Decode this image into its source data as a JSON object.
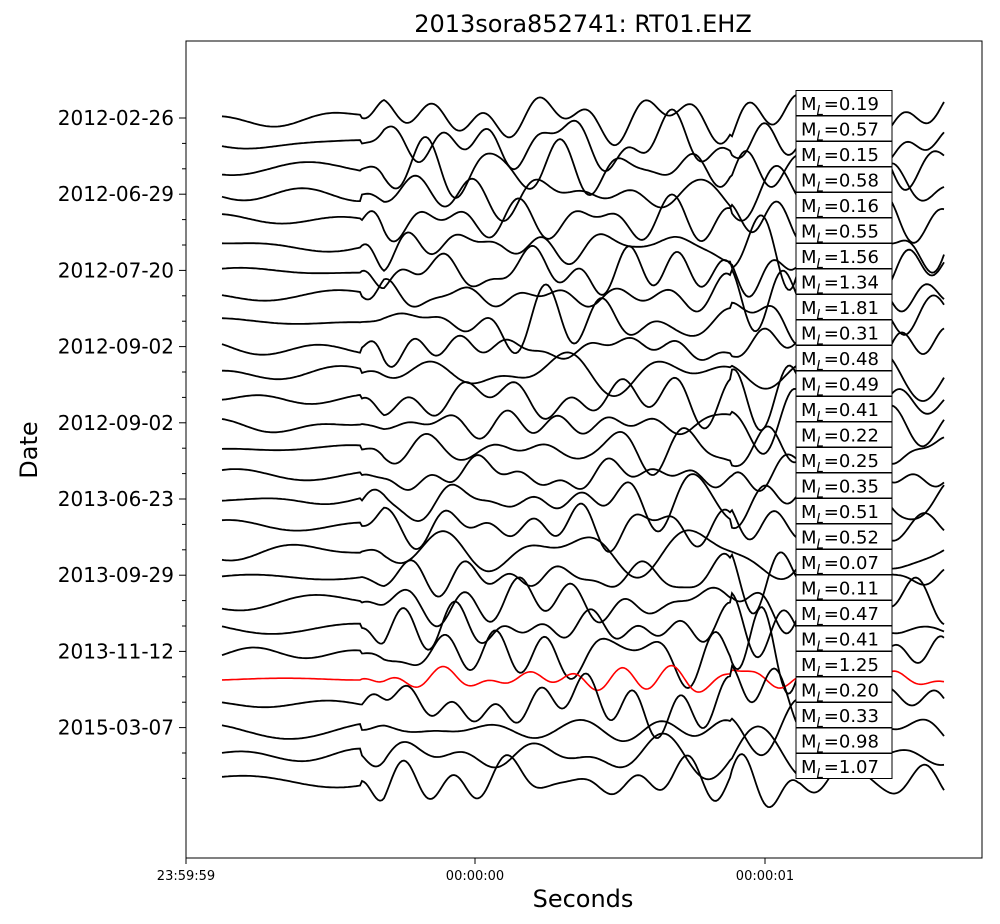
{
  "chart_data": {
    "type": "line",
    "title": "2013sora852741: RT01.EHZ",
    "xlabel": "Seconds",
    "ylabel": "Date",
    "x_ticks": [
      "23:59:59",
      "00:00:00",
      "00:00:01"
    ],
    "y_ticks": [
      "2012-02-26",
      "2012-06-29",
      "2012-07-20",
      "2012-09-02",
      "2012-09-02",
      "2013-06-23",
      "2013-09-29",
      "2013-11-12",
      "2015-03-07"
    ],
    "magnitude_prefix": "M",
    "magnitude_subscript": "L",
    "highlight_color": "#ff0000",
    "trace_color": "#000000",
    "series": [
      {
        "magnitude": "0.19"
      },
      {
        "magnitude": "0.57"
      },
      {
        "magnitude": "0.15"
      },
      {
        "magnitude": "0.58"
      },
      {
        "magnitude": "0.16"
      },
      {
        "magnitude": "0.55"
      },
      {
        "magnitude": "1.56"
      },
      {
        "magnitude": "1.34"
      },
      {
        "magnitude": "1.81"
      },
      {
        "magnitude": "0.31"
      },
      {
        "magnitude": "0.48"
      },
      {
        "magnitude": "0.49"
      },
      {
        "magnitude": "0.41"
      },
      {
        "magnitude": "0.22"
      },
      {
        "magnitude": "0.25"
      },
      {
        "magnitude": "0.35"
      },
      {
        "magnitude": "0.51"
      },
      {
        "magnitude": "0.52"
      },
      {
        "magnitude": "0.07"
      },
      {
        "magnitude": "0.11"
      },
      {
        "magnitude": "0.47"
      },
      {
        "magnitude": "0.41"
      },
      {
        "magnitude": "1.25",
        "highlight": true
      },
      {
        "magnitude": "0.20"
      },
      {
        "magnitude": "0.33"
      },
      {
        "magnitude": "0.98"
      },
      {
        "magnitude": "1.07"
      }
    ]
  }
}
